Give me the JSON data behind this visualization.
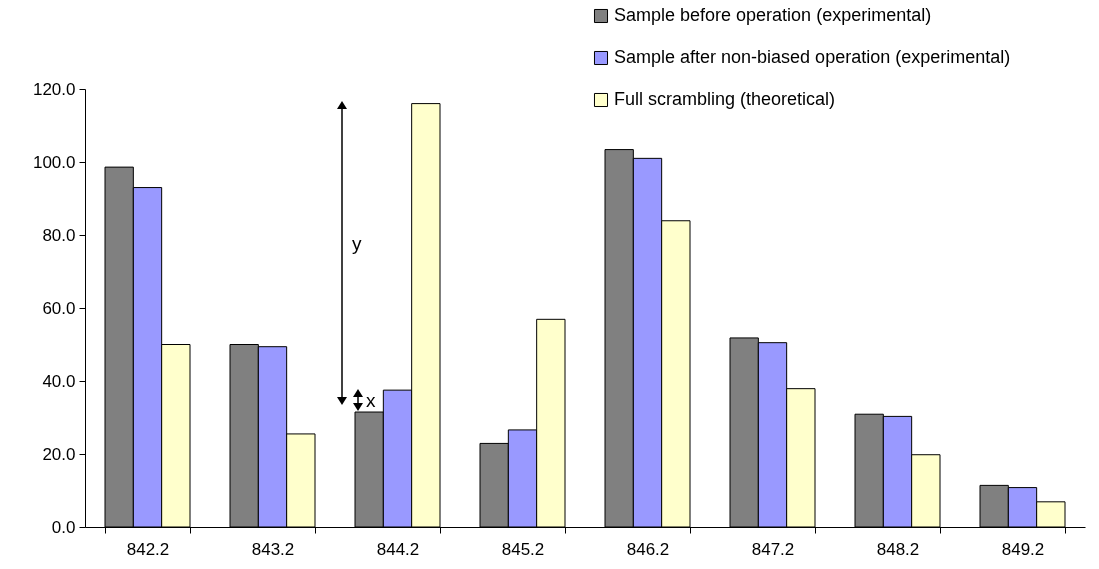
{
  "chart_data": {
    "type": "bar",
    "categories": [
      "842.2",
      "843.2",
      "844.2",
      "845.2",
      "846.2",
      "847.2",
      "848.2",
      "849.2"
    ],
    "series": [
      {
        "name": "Sample before operation (experimental)",
        "color": "#808080",
        "values": [
          98.6,
          50.0,
          31.5,
          22.9,
          103.4,
          51.8,
          30.9,
          11.4
        ]
      },
      {
        "name": "Sample after non-biased operation (experimental)",
        "color": "#9999ff",
        "values": [
          93.0,
          49.4,
          37.5,
          26.6,
          101.0,
          50.5,
          30.3,
          10.8
        ]
      },
      {
        "name": "Full scrambling (theoretical)",
        "color": "#ffffcc",
        "values": [
          50.0,
          25.5,
          116.0,
          56.9,
          83.9,
          37.9,
          19.8,
          6.9
        ]
      }
    ],
    "ylim": [
      0,
      120
    ],
    "yticks": [
      {
        "value": 0,
        "label": "0.0"
      },
      {
        "value": 20,
        "label": "20.0"
      },
      {
        "value": 40,
        "label": "40.0"
      },
      {
        "value": 60,
        "label": "60.0"
      },
      {
        "value": 80,
        "label": "80.0"
      },
      {
        "value": 100,
        "label": "100.0"
      },
      {
        "value": 120,
        "label": "120.0"
      }
    ],
    "grid": false,
    "legend": "top right",
    "annotations": [
      "y",
      "x"
    ]
  }
}
